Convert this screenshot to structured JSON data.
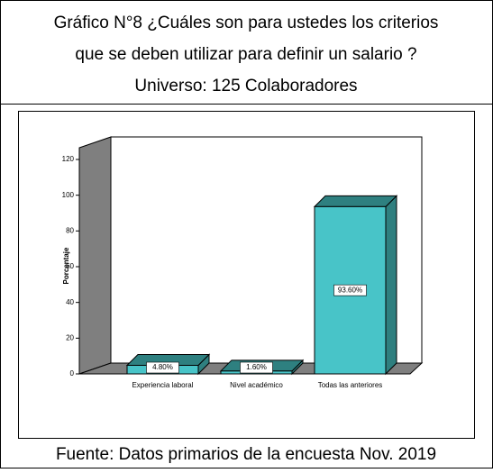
{
  "chart_data": {
    "type": "bar3d",
    "title_lines": [
      "Gráfico N°8 ¿Cuáles son para ustedes los criterios",
      "que se deben utilizar para definir un salario ?",
      "Universo: 125 Colaboradores"
    ],
    "source": "Fuente: Datos primarios de la encuesta Nov. 2019",
    "ylabel": "Porcentaje",
    "categories": [
      "Experiencia laboral",
      "Nivel académico",
      "Todas las anteriores"
    ],
    "values": [
      4.8,
      1.6,
      93.6
    ],
    "value_labels": [
      "4.80%",
      "1.60%",
      "93.60%"
    ],
    "color": "#48c4c8",
    "ylim": [
      0,
      120
    ],
    "yticks": [
      0,
      20,
      40,
      60,
      80,
      100,
      120
    ]
  }
}
